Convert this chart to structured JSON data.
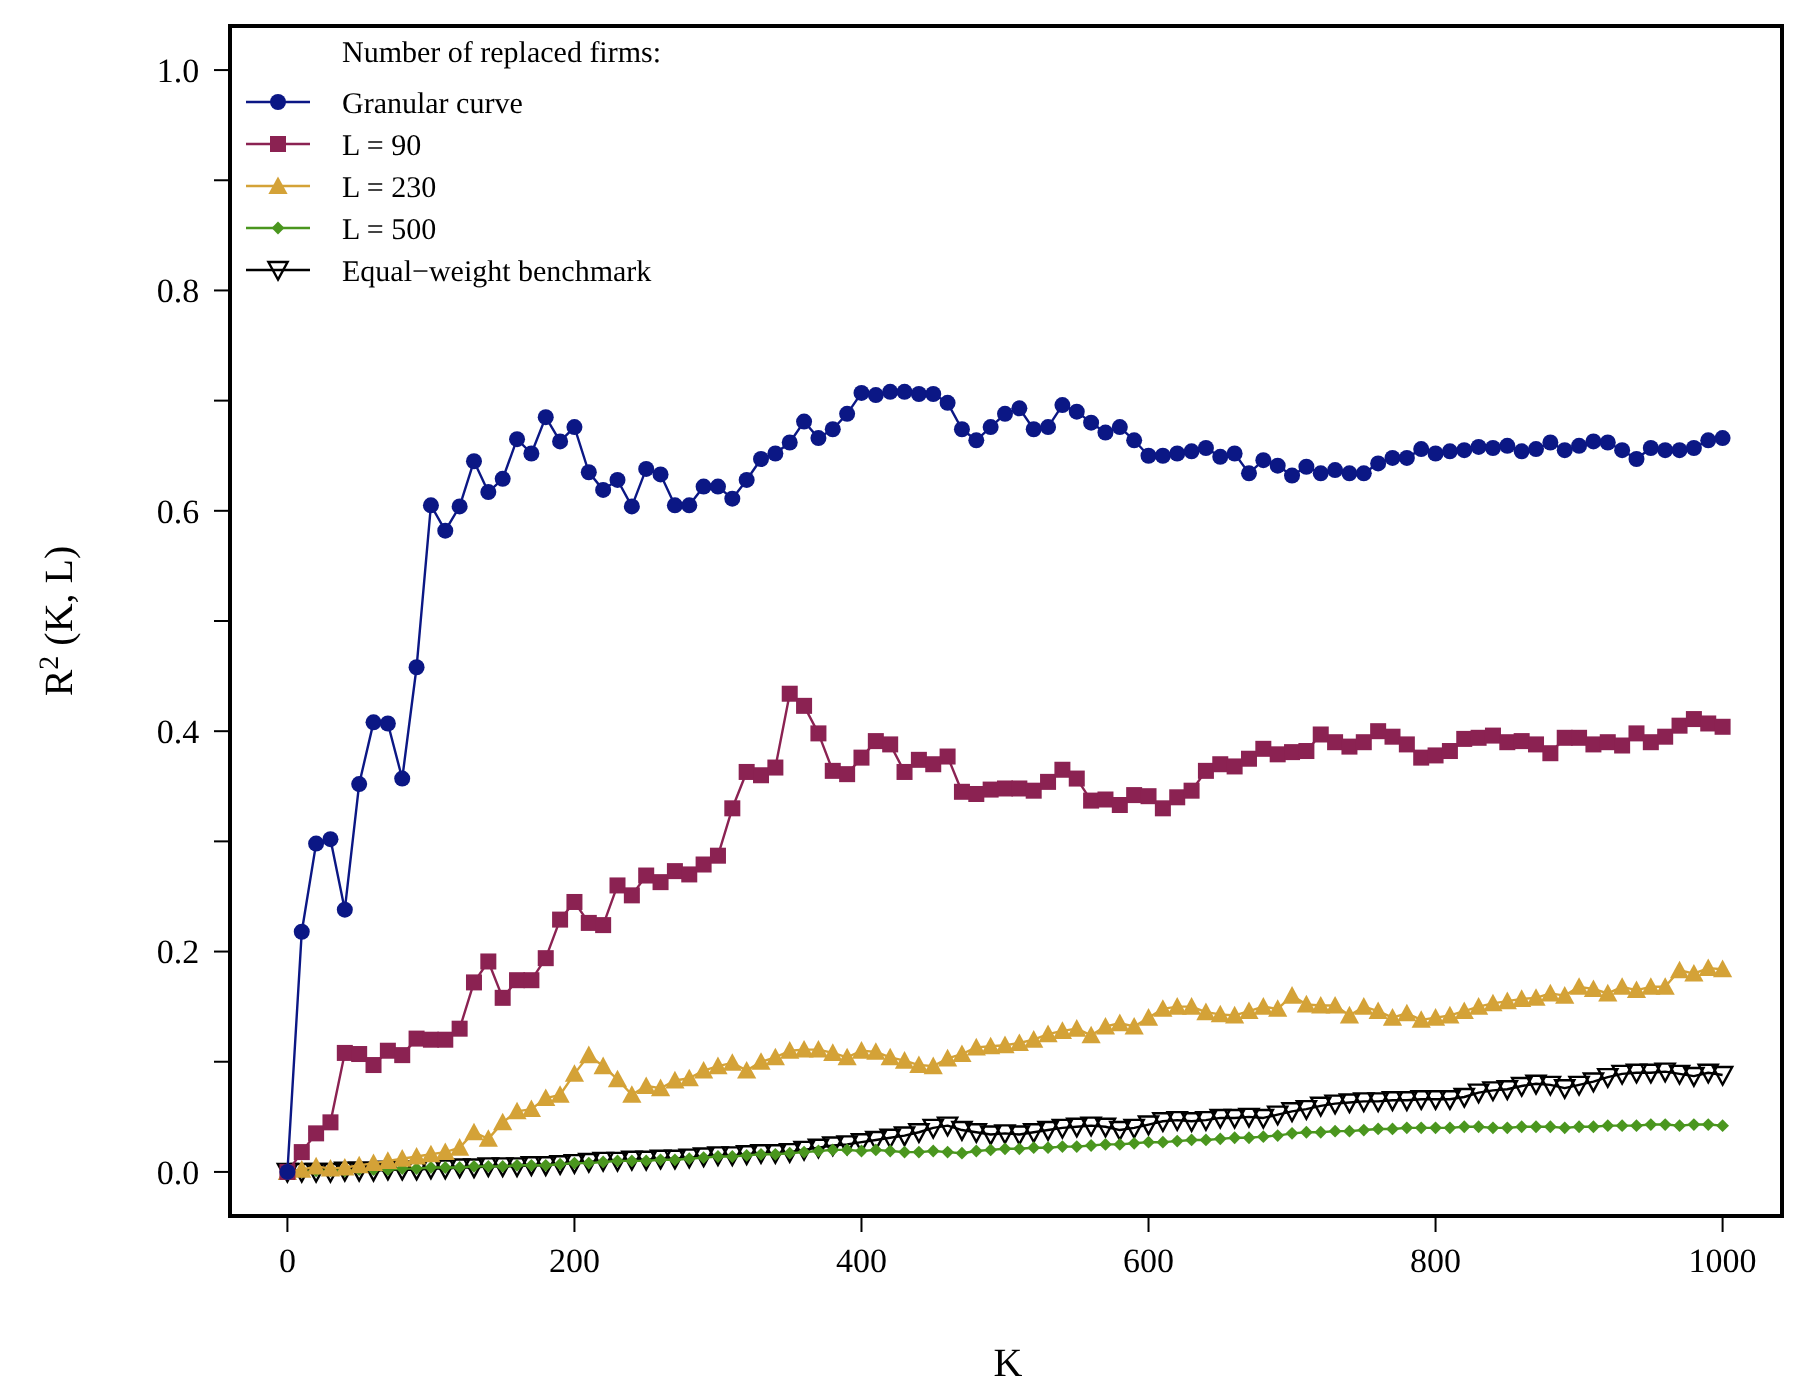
{
  "chart_data": {
    "type": "line",
    "xlabel": "K",
    "ylabel": "R$^{2}$ (K, L)",
    "legend_title": "Number of replaced firms:",
    "legend": "top left",
    "grid": false,
    "xlim": [
      -40,
      1040
    ],
    "ylim": [
      -0.04,
      1.04
    ],
    "xticks": [
      0,
      200,
      400,
      600,
      800,
      1000
    ],
    "yticks": [
      {
        "value": 0,
        "label": "0.0"
      },
      {
        "value": 0.1,
        "label": null
      },
      {
        "value": 0.2,
        "label": "0.2"
      },
      {
        "value": 0.3,
        "label": null
      },
      {
        "value": 0.4,
        "label": "0.4"
      },
      {
        "value": 0.5,
        "label": null
      },
      {
        "value": 0.6,
        "label": "0.6"
      },
      {
        "value": 0.7,
        "label": null
      },
      {
        "value": 0.8,
        "label": "0.8"
      },
      {
        "value": 0.9,
        "label": null
      },
      {
        "value": 1,
        "label": "1.0"
      }
    ],
    "x": [
      0,
      10,
      20,
      30,
      40,
      50,
      60,
      70,
      80,
      90,
      100,
      110,
      120,
      130,
      140,
      150,
      160,
      170,
      180,
      190,
      200,
      210,
      220,
      230,
      240,
      250,
      260,
      270,
      280,
      290,
      300,
      310,
      320,
      330,
      340,
      350,
      360,
      370,
      380,
      390,
      400,
      410,
      420,
      430,
      440,
      450,
      460,
      470,
      480,
      490,
      500,
      510,
      520,
      530,
      540,
      550,
      560,
      570,
      580,
      590,
      600,
      610,
      620,
      630,
      640,
      650,
      660,
      670,
      680,
      690,
      700,
      710,
      720,
      730,
      740,
      750,
      760,
      770,
      780,
      790,
      800,
      810,
      820,
      830,
      840,
      850,
      860,
      870,
      880,
      890,
      900,
      910,
      920,
      930,
      940,
      950,
      960,
      970,
      980,
      990,
      1000
    ],
    "series": [
      {
        "name": "Granular curve",
        "color": "#0b1785",
        "marker": "circle",
        "values": [
          0,
          0.218,
          0.298,
          0.302,
          0.238,
          0.352,
          0.408,
          0.407,
          0.357,
          0.458,
          0.605,
          0.582,
          0.604,
          0.645,
          0.617,
          0.629,
          0.665,
          0.652,
          0.685,
          0.663,
          0.676,
          0.635,
          0.619,
          0.628,
          0.604,
          0.638,
          0.633,
          0.605,
          0.605,
          0.622,
          0.622,
          0.611,
          0.628,
          0.647,
          0.652,
          0.662,
          0.681,
          0.666,
          0.674,
          0.688,
          0.707,
          0.705,
          0.708,
          0.708,
          0.706,
          0.706,
          0.698,
          0.674,
          0.664,
          0.676,
          0.688,
          0.693,
          0.674,
          0.676,
          0.696,
          0.69,
          0.68,
          0.671,
          0.676,
          0.664,
          0.65,
          0.65,
          0.652,
          0.654,
          0.657,
          0.649,
          0.652,
          0.634,
          0.646,
          0.641,
          0.632,
          0.64,
          0.634,
          0.637,
          0.634,
          0.634,
          0.643,
          0.648,
          0.648,
          0.656,
          0.652,
          0.654,
          0.655,
          0.658,
          0.657,
          0.659,
          0.654,
          0.656,
          0.662,
          0.655,
          0.659,
          0.663,
          0.662,
          0.655,
          0.647,
          0.657,
          0.655,
          0.655,
          0.657,
          0.664,
          0.666
        ]
      },
      {
        "name": "L = 90",
        "color": "#8b2252",
        "marker": "square",
        "values": [
          0,
          0.018,
          0.035,
          0.045,
          0.108,
          0.107,
          0.097,
          0.11,
          0.106,
          0.121,
          0.12,
          0.12,
          0.13,
          0.172,
          0.191,
          0.158,
          0.174,
          0.174,
          0.194,
          0.229,
          0.245,
          0.226,
          0.224,
          0.26,
          0.251,
          0.269,
          0.263,
          0.273,
          0.27,
          0.279,
          0.287,
          0.33,
          0.363,
          0.36,
          0.367,
          0.434,
          0.423,
          0.398,
          0.364,
          0.361,
          0.376,
          0.391,
          0.388,
          0.363,
          0.374,
          0.37,
          0.377,
          0.345,
          0.343,
          0.347,
          0.348,
          0.348,
          0.346,
          0.354,
          0.365,
          0.357,
          0.337,
          0.338,
          0.333,
          0.342,
          0.341,
          0.33,
          0.34,
          0.346,
          0.364,
          0.37,
          0.368,
          0.375,
          0.384,
          0.379,
          0.381,
          0.382,
          0.397,
          0.39,
          0.386,
          0.39,
          0.4,
          0.395,
          0.388,
          0.376,
          0.378,
          0.382,
          0.393,
          0.394,
          0.396,
          0.39,
          0.391,
          0.388,
          0.38,
          0.394,
          0.394,
          0.388,
          0.39,
          0.387,
          0.398,
          0.39,
          0.395,
          0.405,
          0.411,
          0.407,
          0.404
        ]
      },
      {
        "name": "L = 230",
        "color": "#d4a237",
        "marker": "triangle",
        "values": [
          0,
          0.002,
          0.005,
          0.003,
          0.004,
          0.006,
          0.008,
          0.01,
          0.012,
          0.014,
          0.016,
          0.018,
          0.022,
          0.036,
          0.03,
          0.045,
          0.055,
          0.057,
          0.067,
          0.07,
          0.089,
          0.106,
          0.096,
          0.084,
          0.07,
          0.078,
          0.076,
          0.083,
          0.085,
          0.092,
          0.096,
          0.099,
          0.092,
          0.1,
          0.104,
          0.11,
          0.111,
          0.111,
          0.108,
          0.104,
          0.11,
          0.109,
          0.104,
          0.101,
          0.097,
          0.096,
          0.103,
          0.107,
          0.113,
          0.114,
          0.115,
          0.117,
          0.12,
          0.125,
          0.128,
          0.13,
          0.124,
          0.132,
          0.135,
          0.132,
          0.14,
          0.148,
          0.15,
          0.15,
          0.145,
          0.143,
          0.142,
          0.146,
          0.15,
          0.148,
          0.16,
          0.152,
          0.151,
          0.151,
          0.142,
          0.15,
          0.146,
          0.14,
          0.144,
          0.138,
          0.14,
          0.142,
          0.146,
          0.15,
          0.153,
          0.155,
          0.157,
          0.158,
          0.162,
          0.16,
          0.168,
          0.166,
          0.162,
          0.168,
          0.165,
          0.168,
          0.168,
          0.183,
          0.18,
          0.185,
          0.184
        ]
      },
      {
        "name": "L = 500",
        "color": "#4a961e",
        "marker": "diamond",
        "values": [
          0,
          0,
          0.001,
          0.001,
          0.001,
          0.002,
          0.002,
          0.002,
          0.003,
          0.003,
          0.004,
          0.004,
          0.004,
          0.005,
          0.005,
          0.005,
          0.006,
          0.006,
          0.006,
          0.007,
          0.008,
          0.008,
          0.009,
          0.01,
          0.01,
          0.01,
          0.011,
          0.011,
          0.012,
          0.013,
          0.014,
          0.014,
          0.015,
          0.016,
          0.016,
          0.017,
          0.018,
          0.019,
          0.02,
          0.02,
          0.019,
          0.02,
          0.019,
          0.018,
          0.018,
          0.019,
          0.018,
          0.017,
          0.019,
          0.02,
          0.021,
          0.021,
          0.022,
          0.022,
          0.023,
          0.023,
          0.024,
          0.025,
          0.025,
          0.026,
          0.027,
          0.027,
          0.028,
          0.029,
          0.029,
          0.03,
          0.031,
          0.031,
          0.032,
          0.033,
          0.035,
          0.036,
          0.036,
          0.037,
          0.037,
          0.038,
          0.039,
          0.039,
          0.04,
          0.04,
          0.04,
          0.04,
          0.041,
          0.041,
          0.04,
          0.04,
          0.041,
          0.041,
          0.041,
          0.04,
          0.041,
          0.041,
          0.042,
          0.042,
          0.042,
          0.043,
          0.043,
          0.042,
          0.043,
          0.043,
          0.042
        ]
      },
      {
        "name": "Equal−weight benchmark",
        "color": "#000000",
        "marker": "triangle-down",
        "values": [
          0,
          0,
          0,
          0,
          0.001,
          0.001,
          0.001,
          0.002,
          0.002,
          0.002,
          0.003,
          0.003,
          0.004,
          0.004,
          0.005,
          0.005,
          0.005,
          0.006,
          0.006,
          0.007,
          0.008,
          0.009,
          0.01,
          0.01,
          0.011,
          0.011,
          0.012,
          0.012,
          0.013,
          0.014,
          0.015,
          0.015,
          0.016,
          0.017,
          0.017,
          0.018,
          0.02,
          0.022,
          0.024,
          0.025,
          0.027,
          0.029,
          0.031,
          0.033,
          0.036,
          0.04,
          0.042,
          0.038,
          0.036,
          0.034,
          0.035,
          0.034,
          0.036,
          0.038,
          0.04,
          0.041,
          0.042,
          0.041,
          0.038,
          0.04,
          0.043,
          0.046,
          0.047,
          0.046,
          0.047,
          0.049,
          0.049,
          0.05,
          0.049,
          0.052,
          0.055,
          0.057,
          0.06,
          0.062,
          0.063,
          0.064,
          0.064,
          0.065,
          0.065,
          0.066,
          0.066,
          0.066,
          0.068,
          0.072,
          0.074,
          0.075,
          0.078,
          0.08,
          0.079,
          0.076,
          0.079,
          0.082,
          0.086,
          0.089,
          0.09,
          0.09,
          0.091,
          0.089,
          0.087,
          0.09,
          0.088
        ]
      }
    ]
  }
}
